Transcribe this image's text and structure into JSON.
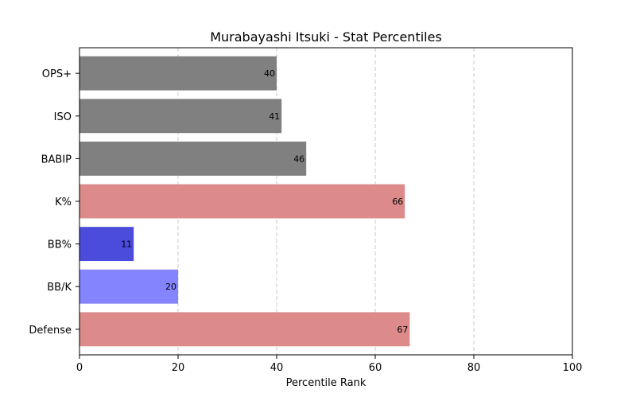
{
  "chart_data": {
    "type": "bar",
    "orientation": "horizontal",
    "title": "Murabayashi Itsuki - Stat Percentiles",
    "xlabel": "Percentile Rank",
    "ylabel": "",
    "xlim": [
      0,
      100
    ],
    "xticks": [
      0,
      20,
      40,
      60,
      80,
      100
    ],
    "grid": "x-dashed",
    "categories": [
      "OPS+",
      "ISO",
      "BABIP",
      "K%",
      "BB%",
      "BB/K",
      "Defense"
    ],
    "values": [
      40,
      41,
      46,
      66,
      11,
      20,
      67
    ],
    "colors": [
      "#808080",
      "#808080",
      "#808080",
      "#dc8a8a",
      "#4b4bdc",
      "#8484ff",
      "#dc8a8a"
    ]
  }
}
